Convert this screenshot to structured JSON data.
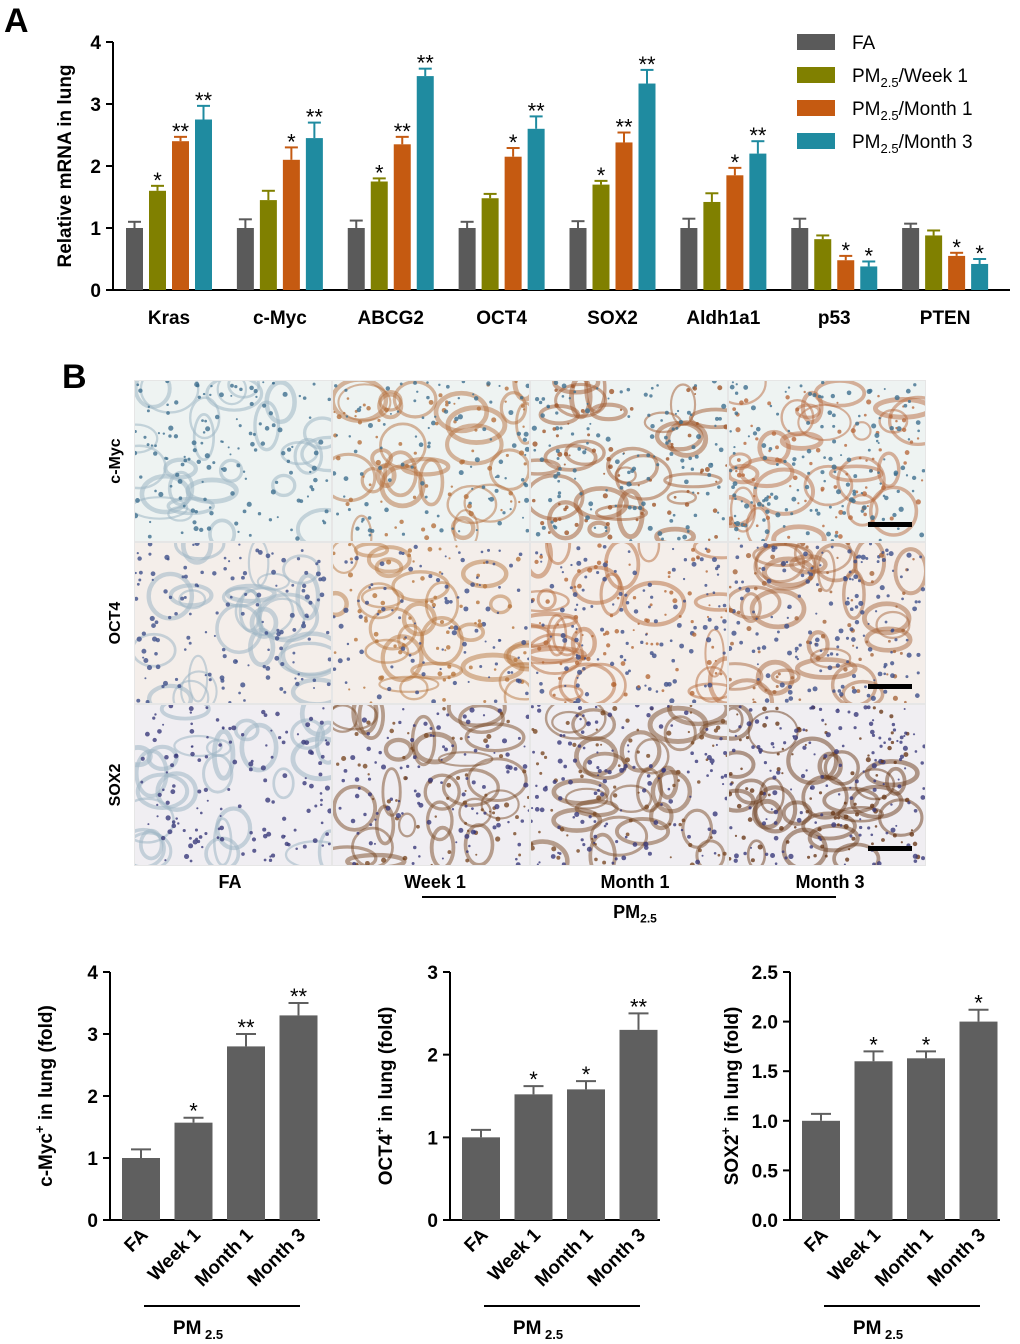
{
  "panels": {
    "a": "A",
    "b": "B"
  },
  "chart_a": {
    "type": "bar",
    "ylabel": "Relative mRNA in lung",
    "ylim": [
      0,
      4
    ],
    "yticks": [
      "0",
      "1",
      "2",
      "3",
      "4"
    ],
    "categories": [
      "Kras",
      "c-Myc",
      "ABCG2",
      "OCT4",
      "SOX2",
      "Aldh1a1",
      "p53",
      "PTEN"
    ],
    "series": [
      {
        "name": "FA",
        "color": "#5a5a5a",
        "values": [
          1.0,
          1.0,
          1.0,
          1.0,
          1.0,
          1.0,
          1.0,
          1.0
        ],
        "errors": [
          0.1,
          0.14,
          0.12,
          0.1,
          0.11,
          0.15,
          0.15,
          0.07
        ],
        "sig": [
          "",
          "",
          "",
          "",
          "",
          "",
          "",
          ""
        ]
      },
      {
        "name": "PM2.5/Week 1",
        "color": "#808000",
        "values": [
          1.6,
          1.45,
          1.75,
          1.48,
          1.7,
          1.42,
          0.82,
          0.88
        ],
        "errors": [
          0.08,
          0.15,
          0.05,
          0.07,
          0.06,
          0.14,
          0.06,
          0.08
        ],
        "sig": [
          "*",
          "",
          "*",
          "",
          "*",
          "",
          "",
          ""
        ]
      },
      {
        "name": "PM2.5/Month 1",
        "color": "#c55a11",
        "values": [
          2.4,
          2.1,
          2.35,
          2.15,
          2.38,
          1.85,
          0.48,
          0.55
        ],
        "errors": [
          0.07,
          0.2,
          0.12,
          0.14,
          0.16,
          0.12,
          0.07,
          0.05
        ],
        "sig": [
          "**",
          "*",
          "**",
          "*",
          "**",
          "*",
          "*",
          "*"
        ]
      },
      {
        "name": "PM2.5/Month 3",
        "color": "#1f8ba0",
        "values": [
          2.75,
          2.45,
          3.45,
          2.6,
          3.33,
          2.2,
          0.38,
          0.42
        ],
        "errors": [
          0.22,
          0.25,
          0.12,
          0.2,
          0.22,
          0.2,
          0.08,
          0.08
        ],
        "sig": [
          "**",
          "**",
          "**",
          "**",
          "**",
          "**",
          "*",
          "*"
        ]
      }
    ],
    "legend": [
      {
        "base": "FA",
        "sub": "",
        "rest": ""
      },
      {
        "base": "PM",
        "sub": "2.5",
        "rest": "/Week 1"
      },
      {
        "base": "PM",
        "sub": "2.5",
        "rest": "/Month 1"
      },
      {
        "base": "PM",
        "sub": "2.5",
        "rest": "/Month 3"
      }
    ],
    "legend_position": "top-right"
  },
  "micrographs": {
    "rows": [
      "c-Myc",
      "OCT4",
      "SOX2"
    ],
    "columns": [
      "FA",
      "Week 1",
      "Month 1",
      "Month 3"
    ],
    "group_label": {
      "base": "PM",
      "sub": "2.5"
    }
  },
  "chart_data": [
    {
      "type": "bar",
      "ylabel_base": "c-Myc",
      "ylabel_sup": "+",
      "ylabel_rest": " in lung (fold)",
      "categories": [
        "FA",
        "Week 1",
        "Month 1",
        "Month 3"
      ],
      "values": [
        1.0,
        1.57,
        2.8,
        3.3
      ],
      "errors": [
        0.14,
        0.08,
        0.2,
        0.2
      ],
      "sig": [
        "",
        "*",
        "**",
        "**"
      ],
      "ylim": [
        0,
        4
      ],
      "yticks": [
        "0",
        "1",
        "2",
        "3",
        "4"
      ],
      "group_label": {
        "base": "PM",
        "sub": "2.5"
      }
    },
    {
      "type": "bar",
      "ylabel_base": "OCT4",
      "ylabel_sup": "+",
      "ylabel_rest": " in lung (fold)",
      "categories": [
        "FA",
        "Week 1",
        "Month 1",
        "Month 3"
      ],
      "values": [
        1.0,
        1.52,
        1.58,
        2.3
      ],
      "errors": [
        0.09,
        0.1,
        0.1,
        0.2
      ],
      "sig": [
        "",
        "*",
        "*",
        "**"
      ],
      "ylim": [
        0,
        3
      ],
      "yticks": [
        "0",
        "1",
        "2",
        "3"
      ],
      "group_label": {
        "base": "PM",
        "sub": "2.5"
      }
    },
    {
      "type": "bar",
      "ylabel_base": "SOX2",
      "ylabel_sup": "+",
      "ylabel_rest": " in lung (fold)",
      "categories": [
        "FA",
        "Week 1",
        "Month 1",
        "Month 3"
      ],
      "values": [
        1.0,
        1.6,
        1.63,
        2.0
      ],
      "errors": [
        0.07,
        0.1,
        0.07,
        0.12
      ],
      "sig": [
        "",
        "*",
        "*",
        "*"
      ],
      "ylim": [
        0,
        2.5
      ],
      "yticks": [
        "0.0",
        "0.5",
        "1.0",
        "1.5",
        "2.0",
        "2.5"
      ],
      "group_label": {
        "base": "PM",
        "sub": "2.5"
      }
    }
  ]
}
